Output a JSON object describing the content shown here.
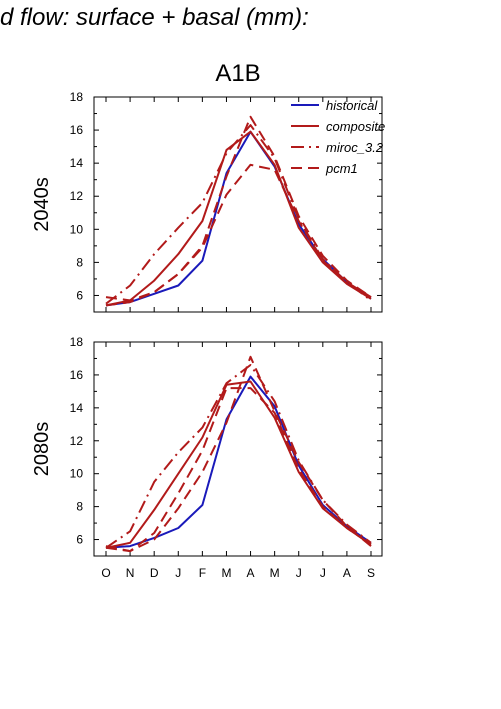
{
  "page_title": "d flow: surface + basal (mm):",
  "chart_data": {
    "type": "line",
    "title": "A1B",
    "categories": [
      "O",
      "N",
      "D",
      "J",
      "F",
      "M",
      "A",
      "M",
      "J",
      "J",
      "A",
      "S"
    ],
    "ylim": [
      5,
      18
    ],
    "yticks": [
      6,
      8,
      10,
      12,
      14,
      16,
      18
    ],
    "grid": false,
    "legend": {
      "placement": "top-right",
      "entries": [
        "historical",
        "composite",
        "miroc_3.2",
        "pcm1"
      ]
    },
    "series_styles": [
      {
        "name": "historical",
        "color": "#1a1aba",
        "dash": "solid"
      },
      {
        "name": "composite",
        "color": "#b21a1a",
        "dash": "solid"
      },
      {
        "name": "miroc_3.2",
        "color": "#b21a1a",
        "dash": "dashdot"
      },
      {
        "name": "pcm1",
        "color": "#b21a1a",
        "dash": "dash"
      }
    ],
    "panels": [
      {
        "ylabel": "2040s",
        "series": [
          {
            "name": "historical",
            "values": [
              5.4,
              5.6,
              6.1,
              6.6,
              8.1,
              13.4,
              15.9,
              13.8,
              10.3,
              8.2,
              6.8,
              5.8
            ]
          },
          {
            "name": "composite",
            "values": [
              5.4,
              5.7,
              6.9,
              8.5,
              10.5,
              14.8,
              15.9,
              13.9,
              10.1,
              8.0,
              6.7,
              5.8
            ]
          },
          {
            "name": "miroc_3.2",
            "values": [
              5.5,
              6.6,
              8.5,
              10.1,
              11.6,
              14.6,
              16.3,
              14.3,
              10.6,
              8.2,
              6.8,
              5.7
            ]
          },
          {
            "name": "pcm1",
            "values": [
              5.9,
              5.7,
              6.2,
              7.3,
              8.9,
              12.1,
              13.9,
              13.6,
              10.5,
              8.1,
              6.8,
              5.9
            ]
          },
          {
            "name": "pcm1",
            "values": [
              5.4,
              5.6,
              6.2,
              7.3,
              9.0,
              13.2,
              16.8,
              14.4,
              10.8,
              8.4,
              6.9,
              5.9
            ]
          }
        ]
      },
      {
        "ylabel": "2080s",
        "series": [
          {
            "name": "historical",
            "values": [
              5.5,
              5.6,
              6.1,
              6.7,
              8.1,
              13.3,
              15.9,
              14.1,
              10.5,
              8.1,
              6.8,
              5.8
            ]
          },
          {
            "name": "composite",
            "values": [
              5.5,
              5.8,
              7.8,
              10.0,
              12.2,
              15.4,
              15.6,
              13.4,
              10.1,
              7.9,
              6.7,
              5.7
            ]
          },
          {
            "name": "miroc_3.2",
            "values": [
              5.5,
              6.5,
              9.5,
              11.3,
              12.8,
              15.5,
              16.6,
              14.4,
              10.8,
              8.4,
              6.9,
              5.8
            ]
          },
          {
            "name": "pcm1",
            "values": [
              5.6,
              5.3,
              6.0,
              7.9,
              10.1,
              13.1,
              17.1,
              13.8,
              10.7,
              8.4,
              6.8,
              5.6
            ]
          },
          {
            "name": "pcm1",
            "values": [
              5.5,
              5.3,
              6.4,
              8.8,
              11.4,
              15.2,
              15.2,
              13.7,
              10.3,
              8.0,
              6.7,
              5.7
            ]
          }
        ]
      }
    ]
  }
}
